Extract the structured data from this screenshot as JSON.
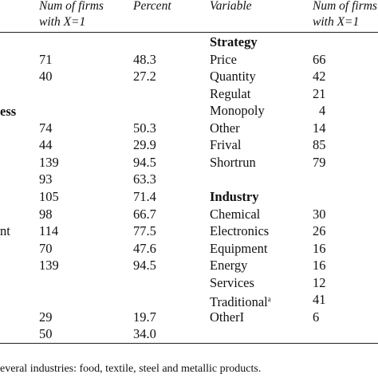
{
  "header": {
    "col_firms": [
      "Num of firms",
      "with X=1"
    ],
    "col_percent": "Percent",
    "col_variable": "Variable",
    "col_firms_right": [
      "Num of firms",
      "with X=1"
    ]
  },
  "left_fragments": [
    "ess",
    "nt"
  ],
  "left_rows": [
    {
      "n": "71",
      "p": "48.3"
    },
    {
      "n": "40",
      "p": "27.2"
    },
    {
      "n": "74",
      "p": "50.3"
    },
    {
      "n": "44",
      "p": "29.9"
    },
    {
      "n": "139",
      "p": "94.5"
    },
    {
      "n": "93",
      "p": "63.3"
    },
    {
      "n": "105",
      "p": "71.4"
    },
    {
      "n": "98",
      "p": "66.7"
    },
    {
      "n": "114",
      "p": "77.5"
    },
    {
      "n": "70",
      "p": "47.6"
    },
    {
      "n": "139",
      "p": "94.5"
    },
    {
      "n": "29",
      "p": "19.7"
    },
    {
      "n": "50",
      "p": "34.0"
    }
  ],
  "strategy": {
    "heading": "Strategy",
    "rows": [
      {
        "v": "Price",
        "n": "66"
      },
      {
        "v": "Quantity",
        "n": "42"
      },
      {
        "v": "Regulat",
        "n": "21"
      },
      {
        "v": "Monopoly",
        "n": "4"
      },
      {
        "v": "Other",
        "n": "14"
      },
      {
        "v": "Frival",
        "n": "85"
      },
      {
        "v": "Shortrun",
        "n": "79"
      }
    ]
  },
  "industry": {
    "heading": "Industry",
    "rows": [
      {
        "v": "Chemical",
        "n": "30"
      },
      {
        "v": "Electronics",
        "n": "26"
      },
      {
        "v": "Equipment",
        "n": "16"
      },
      {
        "v": "Energy",
        "n": "16"
      },
      {
        "v": "Services",
        "n": "12"
      },
      {
        "v": "Traditional",
        "sup": "a",
        "n": "41"
      },
      {
        "v": "OtherI",
        "n": "6"
      }
    ]
  },
  "footnote": "everal industries: food, textile, steel and metallic products."
}
